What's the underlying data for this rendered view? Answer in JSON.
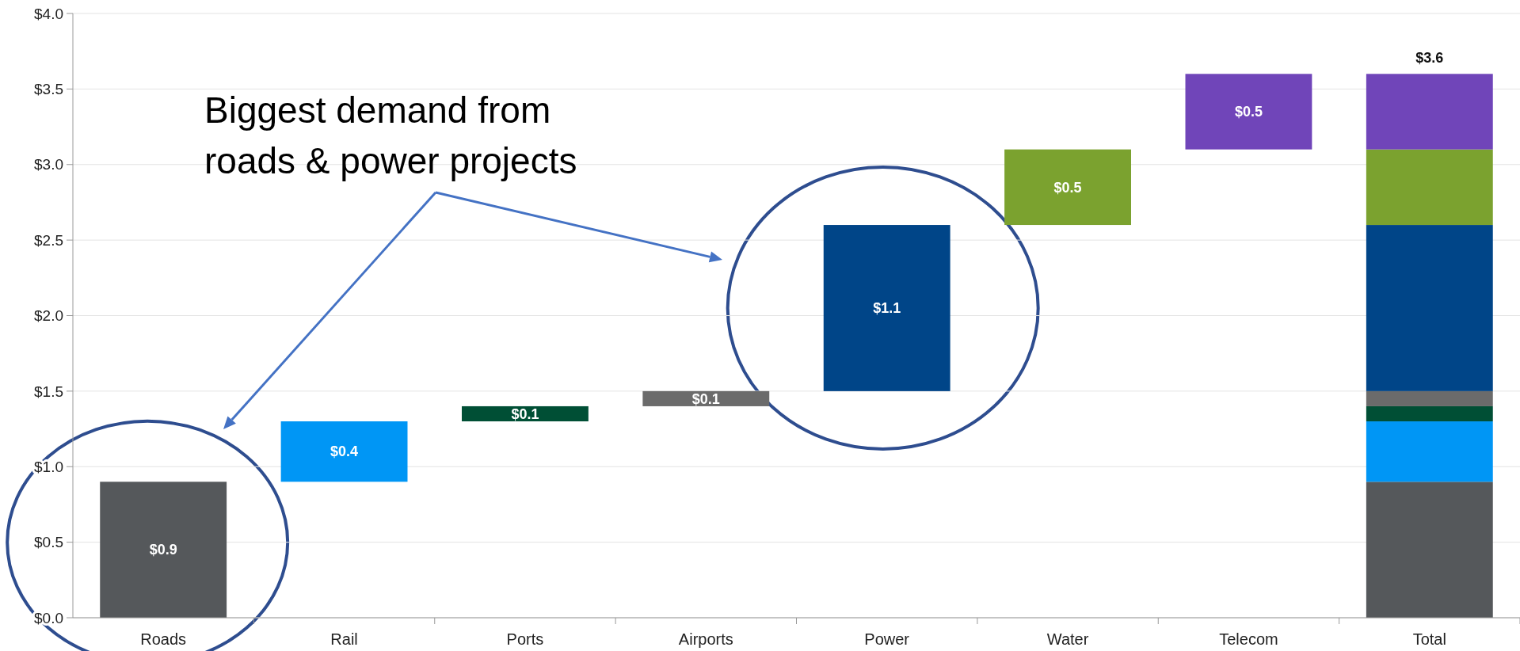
{
  "chart_data": {
    "type": "bar",
    "categories": [
      "Roads",
      "Rail",
      "Ports",
      "Airports",
      "Power",
      "Water",
      "Telecom",
      "Total"
    ],
    "series": [
      {
        "color": "#55585b",
        "values": [
          0.9,
          null,
          null,
          null,
          null,
          null,
          null,
          0.9
        ],
        "base": [
          0,
          null,
          null,
          null,
          null,
          null,
          null,
          0
        ],
        "value_labels": [
          "$0.9",
          null,
          null,
          null,
          null,
          null,
          null,
          null
        ]
      },
      {
        "color": "#0096f5",
        "values": [
          null,
          0.4,
          null,
          null,
          null,
          null,
          null,
          0.4
        ],
        "base": [
          null,
          0.9,
          null,
          null,
          null,
          null,
          null,
          0.9
        ],
        "value_labels": [
          null,
          "$0.4",
          null,
          null,
          null,
          null,
          null,
          null
        ]
      },
      {
        "color": "#004f35",
        "values": [
          null,
          null,
          0.1,
          null,
          null,
          null,
          null,
          0.1
        ],
        "base": [
          null,
          null,
          1.3,
          null,
          null,
          null,
          null,
          1.3
        ],
        "value_labels": [
          null,
          null,
          "$0.1",
          null,
          null,
          null,
          null,
          null
        ]
      },
      {
        "color": "#6b6b6b",
        "values": [
          null,
          null,
          null,
          0.1,
          null,
          null,
          null,
          0.1
        ],
        "base": [
          null,
          null,
          null,
          1.4,
          null,
          null,
          null,
          1.4
        ],
        "value_labels": [
          null,
          null,
          null,
          "$0.1",
          null,
          null,
          null,
          null
        ]
      },
      {
        "color": "#004588",
        "values": [
          null,
          null,
          null,
          null,
          1.1,
          null,
          null,
          1.1
        ],
        "base": [
          null,
          null,
          null,
          null,
          1.5,
          null,
          null,
          1.5
        ],
        "value_labels": [
          null,
          null,
          null,
          null,
          "$1.1",
          null,
          null,
          null
        ]
      },
      {
        "color": "#7ba22f",
        "values": [
          null,
          null,
          null,
          null,
          null,
          0.5,
          null,
          0.5
        ],
        "base": [
          null,
          null,
          null,
          null,
          null,
          2.6,
          null,
          2.6
        ],
        "value_labels": [
          null,
          null,
          null,
          null,
          null,
          "$0.5",
          null,
          null
        ]
      },
      {
        "color": "#7045b9",
        "values": [
          null,
          null,
          null,
          null,
          null,
          null,
          0.5,
          0.5
        ],
        "base": [
          null,
          null,
          null,
          null,
          null,
          null,
          3.1,
          3.1
        ],
        "value_labels": [
          null,
          null,
          null,
          null,
          null,
          null,
          "$0.5",
          null
        ]
      }
    ],
    "totals": [
      null,
      null,
      null,
      null,
      null,
      null,
      null,
      "$3.6"
    ],
    "ylim": [
      0,
      4
    ],
    "yticks": [
      {
        "value": 0,
        "label": "$0.0"
      },
      {
        "value": 0.5,
        "label": "$0.5"
      },
      {
        "value": 1,
        "label": "$1.0"
      },
      {
        "value": 1.5,
        "label": "$1.5"
      },
      {
        "value": 2,
        "label": "$2.0"
      },
      {
        "value": 2.5,
        "label": "$2.5"
      },
      {
        "value": 3,
        "label": "$3.0"
      },
      {
        "value": 3.5,
        "label": "$3.5"
      },
      {
        "value": 4,
        "label": "$4.0"
      }
    ],
    "grid": "y",
    "annotations": [
      "Biggest demand from roads & power projects"
    ]
  }
}
